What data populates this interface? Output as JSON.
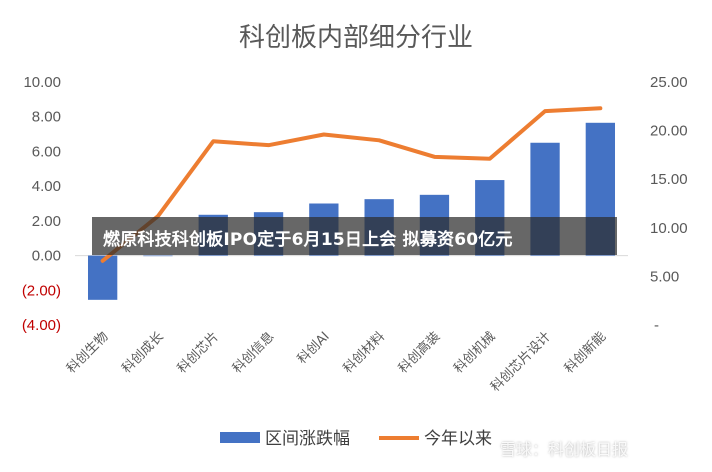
{
  "chart_data": {
    "type": "bar",
    "title": "科创板内部细分行业",
    "categories": [
      "科创生物",
      "科创成长",
      "科创芯片",
      "科创信息",
      "科创AI",
      "科创材料",
      "科创高装",
      "科创机械",
      "科创芯片设计",
      "科创新能"
    ],
    "series": [
      {
        "name": "区间涨跌幅",
        "type": "bar",
        "axis": "left",
        "color": "#4472C4",
        "values": [
          -2.55,
          0.0,
          2.35,
          2.5,
          3.0,
          3.25,
          3.5,
          4.35,
          6.5,
          7.65
        ]
      },
      {
        "name": "今年以来",
        "type": "line",
        "axis": "right",
        "color": "#ED7D31",
        "values": [
          6.6,
          11.2,
          18.9,
          18.5,
          19.6,
          19.0,
          17.3,
          17.1,
          22.0,
          22.3
        ]
      }
    ],
    "y_left": {
      "ylim": [
        -4,
        10
      ],
      "ticks": [
        "10.00",
        "8.00",
        "6.00",
        "4.00",
        "2.00",
        "0.00",
        "(2.00)",
        "(4.00)"
      ]
    },
    "y_right": {
      "ylim": [
        0,
        25
      ],
      "ticks": [
        "25.00",
        "20.00",
        "15.00",
        "10.00",
        "5.00",
        "-"
      ]
    },
    "grid": false,
    "legend": "bottom"
  },
  "overlay": {
    "banner_text": "燃原科技科创板IPO定于6月15日上会 拟募资60亿元",
    "watermark": "雪球：科创板日报"
  },
  "colors": {
    "bar": "#4472C4",
    "line": "#ED7D31",
    "negative_tick": "#C00000"
  }
}
